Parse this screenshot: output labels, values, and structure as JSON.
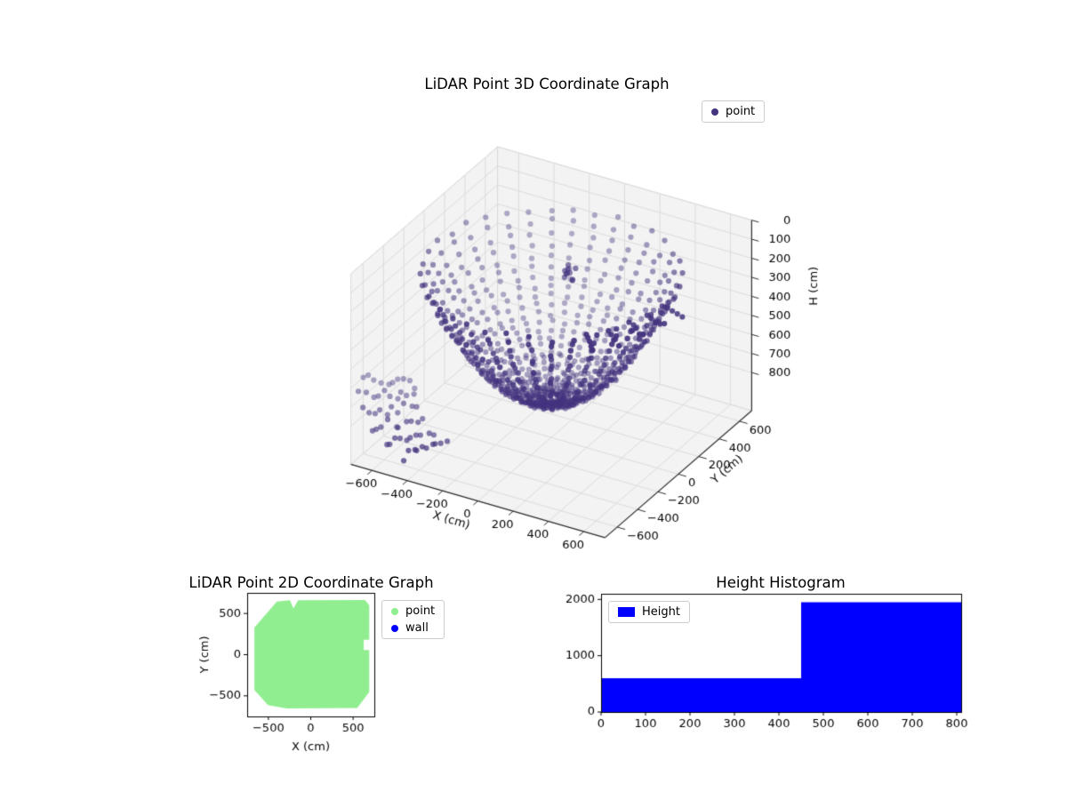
{
  "figure": {
    "background": "#ffffff"
  },
  "chart_data": [
    {
      "type": "scatter",
      "subtype": "3d-point-cloud",
      "title": "LiDAR Point 3D Coordinate Graph",
      "xlabel": "X (cm)",
      "ylabel": "Y (cm)",
      "zlabel": "H (cm)",
      "xticks": [
        -600,
        -400,
        -200,
        0,
        200,
        400,
        600
      ],
      "yticks": [
        -600,
        -400,
        -200,
        0,
        200,
        400,
        600
      ],
      "hticks": [
        0,
        100,
        200,
        300,
        400,
        500,
        600,
        700,
        800
      ],
      "xlim": [
        -720,
        720
      ],
      "ylim": [
        -720,
        720
      ],
      "hlim": [
        0,
        1000
      ],
      "h_axis_inverted": true,
      "legend": [
        {
          "label": "point",
          "color": "#44337e",
          "marker": "circle"
        }
      ],
      "point_color": "#44337e",
      "pane_color": "#f3f3f3",
      "pane_edge_color": "#d9d9d9",
      "grid_color": "#dcdcdc",
      "axis_color": "#2f2f2f",
      "cloud": {
        "shape": "radial-bowl",
        "spoke_count": 36,
        "spokes_deg_step": 10,
        "r_min": 40,
        "r_max": 640,
        "r_step": 25,
        "floor_h": 800,
        "bowl_coeff": 0.0016,
        "rim_h_min": 120,
        "jitter_xy": 14,
        "jitter_h": 26,
        "stray_spokes_deg": [
          200,
          210,
          220,
          230,
          240,
          250
        ],
        "stray_r_max": 950,
        "stray_r_step": 30,
        "stray_h": 780,
        "overflow_spokes_deg": [
          315,
          325,
          335,
          345,
          355
        ],
        "overflow_r_max": 790,
        "cluster": {
          "x": 60,
          "y": 80,
          "h": 160,
          "count": 10,
          "spread_xy": 60,
          "spread_h": 90
        }
      }
    },
    {
      "type": "scatter",
      "subtype": "2d-occupancy",
      "title": "LiDAR Point 2D Coordinate Graph",
      "xlabel": "X (cm)",
      "ylabel": "Y (cm)",
      "xticks": [
        -500,
        0,
        500
      ],
      "yticks": [
        -500,
        0,
        500
      ],
      "xlim": [
        -750,
        750
      ],
      "ylim": [
        -750,
        750
      ],
      "series": [
        {
          "name": "point",
          "color": "#90ee90",
          "shape": "filled-region",
          "region_polygon": [
            [
              -665,
              330
            ],
            [
              -400,
              645
            ],
            [
              -245,
              662
            ],
            [
              -205,
              560
            ],
            [
              -148,
              662
            ],
            [
              640,
              665
            ],
            [
              690,
              600
            ],
            [
              690,
              182
            ],
            [
              624,
              182
            ],
            [
              624,
              58
            ],
            [
              690,
              58
            ],
            [
              690,
              -452
            ],
            [
              548,
              -648
            ],
            [
              -285,
              -652
            ],
            [
              -505,
              -612
            ],
            [
              -665,
              -430
            ]
          ]
        },
        {
          "name": "wall",
          "color": "#0000ff",
          "points": []
        }
      ]
    },
    {
      "type": "bar",
      "subtype": "histogram",
      "title": "Height Histogram",
      "series": [
        {
          "name": "Height",
          "color": "#0000ff"
        }
      ],
      "bins": {
        "edges": [
          0,
          450,
          810
        ],
        "heights": [
          600,
          1950
        ]
      },
      "xticks": [
        0,
        100,
        200,
        300,
        400,
        500,
        600,
        700,
        800
      ],
      "yticks": [
        0,
        1000,
        2000
      ],
      "xlim": [
        0,
        810
      ],
      "ylim": [
        0,
        2100
      ],
      "grid": false,
      "legend_position": "upper-left"
    }
  ]
}
